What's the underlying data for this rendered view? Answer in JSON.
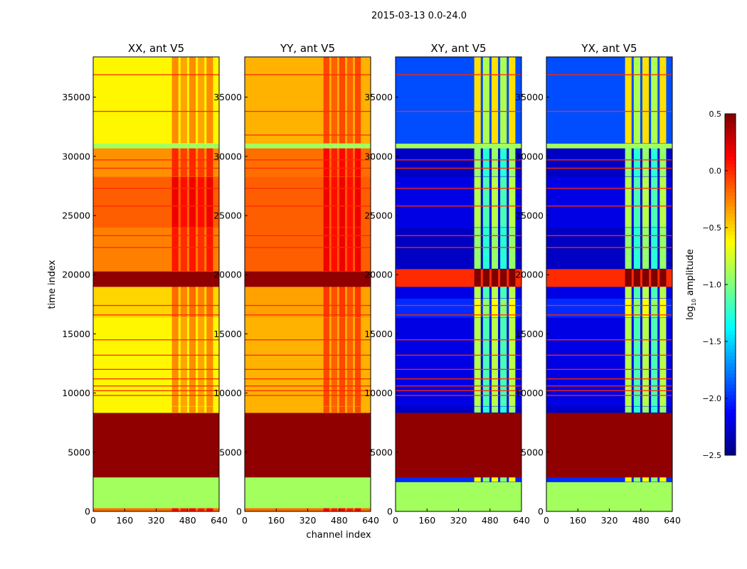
{
  "chart_data": {
    "type": "heatmap",
    "title": "2015-03-13 0.0-24.0",
    "xlabel": "channel index",
    "ylabel": "time index",
    "xlim": [
      0,
      640
    ],
    "ylim": [
      0,
      38400
    ],
    "xticks": [
      "0",
      "160",
      "320",
      "480",
      "640"
    ],
    "xtick_values": [
      0,
      160,
      320,
      480,
      640
    ],
    "yticks": [
      "0",
      "5000",
      "10000",
      "15000",
      "20000",
      "25000",
      "30000",
      "35000"
    ],
    "ytick_values": [
      0,
      5000,
      10000,
      15000,
      20000,
      25000,
      30000,
      35000
    ],
    "colorbar": {
      "label_prefix": "log",
      "label_sub": "10",
      "label_suffix": " amplitude",
      "range": [
        -2.5,
        0.5
      ],
      "colormap": "jet",
      "ticks": [
        "0.5",
        "0.0",
        "−0.5",
        "−1.0",
        "−1.5",
        "−2.0",
        "−2.5"
      ],
      "tick_values": [
        0.5,
        0.0,
        -0.5,
        -1.0,
        -1.5,
        -2.0,
        -2.5
      ]
    },
    "panels": [
      {
        "title": "XX, ant V5",
        "bands": [
          [
            0,
            300,
            -0.2
          ],
          [
            300,
            2900,
            -0.9
          ],
          [
            2900,
            8350,
            0.45
          ],
          [
            8350,
            8900,
            -0.6
          ],
          [
            8900,
            16400,
            -0.6
          ],
          [
            16400,
            19000,
            -0.5
          ],
          [
            19000,
            20300,
            0.45
          ],
          [
            20300,
            24000,
            -0.25
          ],
          [
            24000,
            28300,
            -0.15
          ],
          [
            28300,
            30700,
            -0.3
          ],
          [
            30700,
            31100,
            -0.9
          ],
          [
            31100,
            38400,
            -0.6
          ]
        ],
        "column_boost": [
          [
            400,
            620,
            0.3
          ]
        ],
        "lines": [
          9800,
          10200,
          10600,
          11200,
          12000,
          13200,
          14500,
          16600,
          17400,
          22300,
          23300,
          25800,
          27300,
          29000,
          29700,
          33800,
          36900
        ],
        "line_value": 0.0
      },
      {
        "title": "YY, ant V5",
        "bands": [
          [
            0,
            300,
            -0.2
          ],
          [
            300,
            2900,
            -0.9
          ],
          [
            2900,
            8350,
            0.45
          ],
          [
            8350,
            8900,
            -0.4
          ],
          [
            8900,
            16400,
            -0.4
          ],
          [
            16400,
            19000,
            -0.35
          ],
          [
            19000,
            20300,
            0.45
          ],
          [
            20300,
            24000,
            -0.15
          ],
          [
            24000,
            28300,
            -0.15
          ],
          [
            28300,
            30700,
            -0.2
          ],
          [
            30700,
            31100,
            -0.9
          ],
          [
            31100,
            38400,
            -0.4
          ]
        ],
        "column_boost": [
          [
            400,
            600,
            0.3
          ]
        ],
        "lines": [
          9800,
          10200,
          10600,
          11200,
          12000,
          13200,
          14500,
          16600,
          17400,
          22300,
          23300,
          25800,
          27300,
          29000,
          29700,
          31800,
          33800,
          36900
        ],
        "line_value": 0.0
      },
      {
        "title": "XY, ant V5",
        "bands": [
          [
            0,
            300,
            -0.9
          ],
          [
            300,
            2500,
            -0.9
          ],
          [
            2500,
            2900,
            -2.0
          ],
          [
            2900,
            8350,
            0.45
          ],
          [
            8350,
            8900,
            -2.3
          ],
          [
            8900,
            16400,
            -2.2
          ],
          [
            16400,
            18000,
            -2.0
          ],
          [
            18000,
            19000,
            -2.2
          ],
          [
            19000,
            20500,
            0.0
          ],
          [
            20500,
            24000,
            -2.3
          ],
          [
            24000,
            28300,
            -2.2
          ],
          [
            28300,
            30700,
            -2.3
          ],
          [
            30700,
            31100,
            -0.9
          ],
          [
            31100,
            38400,
            -1.9
          ]
        ],
        "column_boost": [
          [
            400,
            620,
            1.3
          ]
        ],
        "lines": [
          9800,
          10200,
          10600,
          11200,
          12000,
          13200,
          14500,
          16600,
          17400,
          22300,
          23300,
          25800,
          27300,
          29000,
          29700,
          33800,
          36900
        ],
        "line_value": 0.0
      },
      {
        "title": "YX, ant V5",
        "bands": [
          [
            0,
            300,
            -0.9
          ],
          [
            300,
            2500,
            -0.9
          ],
          [
            2500,
            2900,
            -2.0
          ],
          [
            2900,
            8350,
            0.45
          ],
          [
            8350,
            8900,
            -2.3
          ],
          [
            8900,
            16400,
            -2.2
          ],
          [
            16400,
            18000,
            -2.0
          ],
          [
            18000,
            19000,
            -2.2
          ],
          [
            19000,
            20500,
            0.0
          ],
          [
            20500,
            24000,
            -2.3
          ],
          [
            24000,
            28300,
            -2.2
          ],
          [
            28300,
            30700,
            -2.3
          ],
          [
            30700,
            31100,
            -0.9
          ],
          [
            31100,
            38400,
            -1.9
          ]
        ],
        "column_boost": [
          [
            400,
            620,
            1.3
          ]
        ],
        "lines": [
          9800,
          10200,
          10600,
          11200,
          12000,
          13200,
          14500,
          16600,
          17400,
          22300,
          23300,
          25800,
          27300,
          29000,
          29700,
          33800,
          36900
        ],
        "line_value": 0.0
      }
    ]
  }
}
